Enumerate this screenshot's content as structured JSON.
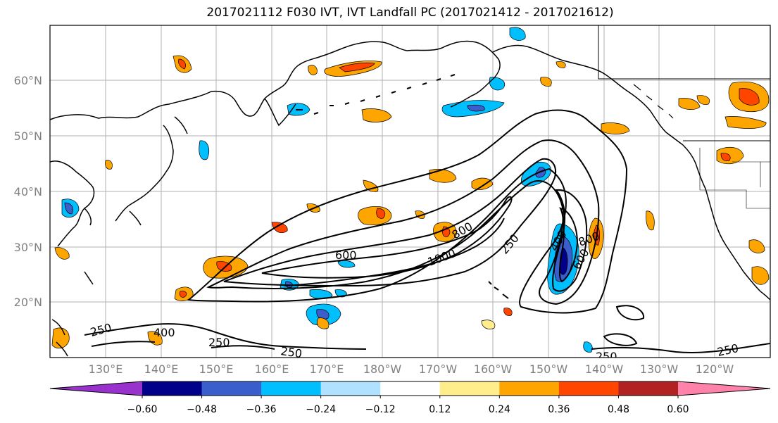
{
  "title": "2017021112 F030 IVT, IVT Landfall PC (2017021412 - 2017021612)",
  "map": {
    "lat_ticks": [
      "60°N",
      "50°N",
      "40°N",
      "30°N",
      "20°N"
    ],
    "lon_ticks": [
      "130°E",
      "140°E",
      "150°E",
      "160°E",
      "170°E",
      "180°W",
      "170°W",
      "160°W",
      "150°W",
      "140°W",
      "130°W",
      "120°W"
    ],
    "contour_labels": [
      "600",
      "800",
      "1000",
      "250",
      "400",
      "800",
      "600",
      "250",
      "400",
      "250",
      "250",
      "250",
      "250"
    ],
    "grid": true
  },
  "colorbar": {
    "ticks": [
      "−0.60",
      "−0.48",
      "−0.36",
      "−0.24",
      "−0.12",
      "0.12",
      "0.24",
      "0.36",
      "0.48",
      "0.60"
    ],
    "colors": [
      "#9932cc",
      "#00008b",
      "#3a5fcd",
      "#00bfff",
      "#b0e2ff",
      "#ffffff",
      "#ffec8b",
      "#ffa500",
      "#ff4500",
      "#b22222",
      "#ff82ab"
    ]
  }
}
